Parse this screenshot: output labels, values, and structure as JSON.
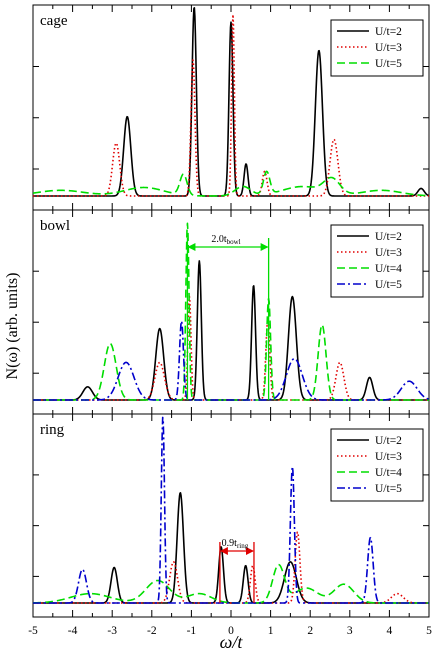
{
  "chart_data": {
    "type": "line",
    "xlabel": "ω/t",
    "xlim": [
      -5,
      5
    ],
    "xticks": [
      "-5",
      "-4",
      "-3",
      "-2",
      "-1",
      "0",
      "1",
      "2",
      "3",
      "4",
      "5"
    ],
    "ylabel": "N(ω) (arb. units)",
    "panels": [
      {
        "label": "cage",
        "ylim": [
          0,
          1
        ],
        "series": [
          {
            "name": "U/t=2",
            "color": "#000000",
            "dash": "solid",
            "peaks": [
              [
                -2.62,
                0.42,
                0.09
              ],
              [
                -0.93,
                1.0,
                0.055
              ],
              [
                0.0,
                0.92,
                0.05
              ],
              [
                0.38,
                0.17,
                0.05
              ],
              [
                2.22,
                0.77,
                0.09
              ],
              [
                4.8,
                0.04,
                0.08
              ]
            ]
          },
          {
            "name": "U/t=3",
            "color": "#e00000",
            "dash": "dotted",
            "peaks": [
              [
                -2.9,
                0.28,
                0.09
              ],
              [
                -0.96,
                0.72,
                0.05
              ],
              [
                0.05,
                0.96,
                0.035
              ],
              [
                0.85,
                0.13,
                0.06
              ],
              [
                2.6,
                0.3,
                0.1
              ]
            ]
          },
          {
            "name": "U/t=5",
            "color": "#00dd00",
            "dash": "dashed",
            "peaks": [
              [
                -4.3,
                0.03,
                0.6
              ],
              [
                -2.2,
                0.045,
                0.5
              ],
              [
                -1.2,
                0.11,
                0.09
              ],
              [
                0.3,
                0.05,
                0.2
              ],
              [
                0.9,
                0.12,
                0.08
              ],
              [
                1.8,
                0.05,
                0.5
              ],
              [
                2.55,
                0.08,
                0.2
              ],
              [
                3.8,
                0.03,
                0.5
              ]
            ]
          }
        ]
      },
      {
        "label": "bowl",
        "ylim": [
          0,
          1
        ],
        "series": [
          {
            "name": "U/t=2",
            "color": "#000000",
            "dash": "solid",
            "peaks": [
              [
                -3.62,
                0.07,
                0.12
              ],
              [
                -1.8,
                0.38,
                0.1
              ],
              [
                -0.8,
                0.74,
                0.05
              ],
              [
                0.57,
                0.61,
                0.05
              ],
              [
                1.55,
                0.55,
                0.1
              ],
              [
                3.5,
                0.12,
                0.08
              ]
            ]
          },
          {
            "name": "U/t=3",
            "color": "#e00000",
            "dash": "dotted",
            "peaks": [
              [
                -1.8,
                0.2,
                0.12
              ],
              [
                -1.05,
                0.55,
                0.04
              ],
              [
                0.93,
                0.43,
                0.05
              ],
              [
                2.75,
                0.2,
                0.1
              ]
            ]
          },
          {
            "name": "U/t=4",
            "color": "#00dd00",
            "dash": "dashed",
            "peaks": [
              [
                -3.05,
                0.3,
                0.15
              ],
              [
                -1.1,
                0.94,
                0.04
              ],
              [
                0.95,
                0.54,
                0.05
              ],
              [
                2.3,
                0.4,
                0.1
              ]
            ]
          },
          {
            "name": "U/t=5",
            "color": "#0000cc",
            "dash": "dashdot",
            "peaks": [
              [
                -2.65,
                0.2,
                0.2
              ],
              [
                -1.25,
                0.42,
                0.05
              ],
              [
                1.6,
                0.22,
                0.2
              ],
              [
                4.5,
                0.1,
                0.2
              ]
            ]
          }
        ],
        "annotation": {
          "text": "2.0t",
          "sub": "bowl",
          "color": "#00dd00",
          "from": -1.1,
          "to": 0.95
        }
      },
      {
        "label": "ring",
        "ylim": [
          0,
          1
        ],
        "series": [
          {
            "name": "U/t=2",
            "color": "#000000",
            "dash": "solid",
            "peaks": [
              [
                -2.95,
                0.19,
                0.08
              ],
              [
                -1.28,
                0.59,
                0.08
              ],
              [
                -0.25,
                0.3,
                0.06
              ],
              [
                0.37,
                0.2,
                0.06
              ],
              [
                1.5,
                0.22,
                0.15
              ]
            ]
          },
          {
            "name": "U/t=3",
            "color": "#e00000",
            "dash": "dotted",
            "peaks": [
              [
                -1.45,
                0.22,
                0.1
              ],
              [
                0.55,
                0.2,
                0.06
              ],
              [
                1.68,
                0.38,
                0.06
              ],
              [
                4.2,
                0.05,
                0.15
              ]
            ]
          },
          {
            "name": "U/t=4",
            "color": "#00dd00",
            "dash": "dashed",
            "peaks": [
              [
                -3.55,
                0.05,
                0.5
              ],
              [
                -1.85,
                0.12,
                0.3
              ],
              [
                -0.8,
                0.05,
                0.3
              ],
              [
                1.2,
                0.2,
                0.15
              ],
              [
                1.9,
                0.08,
                0.3
              ],
              [
                2.85,
                0.1,
                0.25
              ]
            ]
          },
          {
            "name": "U/t=5",
            "color": "#0000cc",
            "dash": "dashdot",
            "peaks": [
              [
                -3.75,
                0.18,
                0.1
              ],
              [
                -1.72,
                1.0,
                0.04
              ],
              [
                1.55,
                0.73,
                0.05
              ],
              [
                3.52,
                0.35,
                0.07
              ]
            ]
          }
        ],
        "annotation": {
          "text": "0.9t",
          "sub": "ring",
          "color": "#e00000",
          "from": -0.28,
          "to": 0.58
        }
      }
    ]
  }
}
